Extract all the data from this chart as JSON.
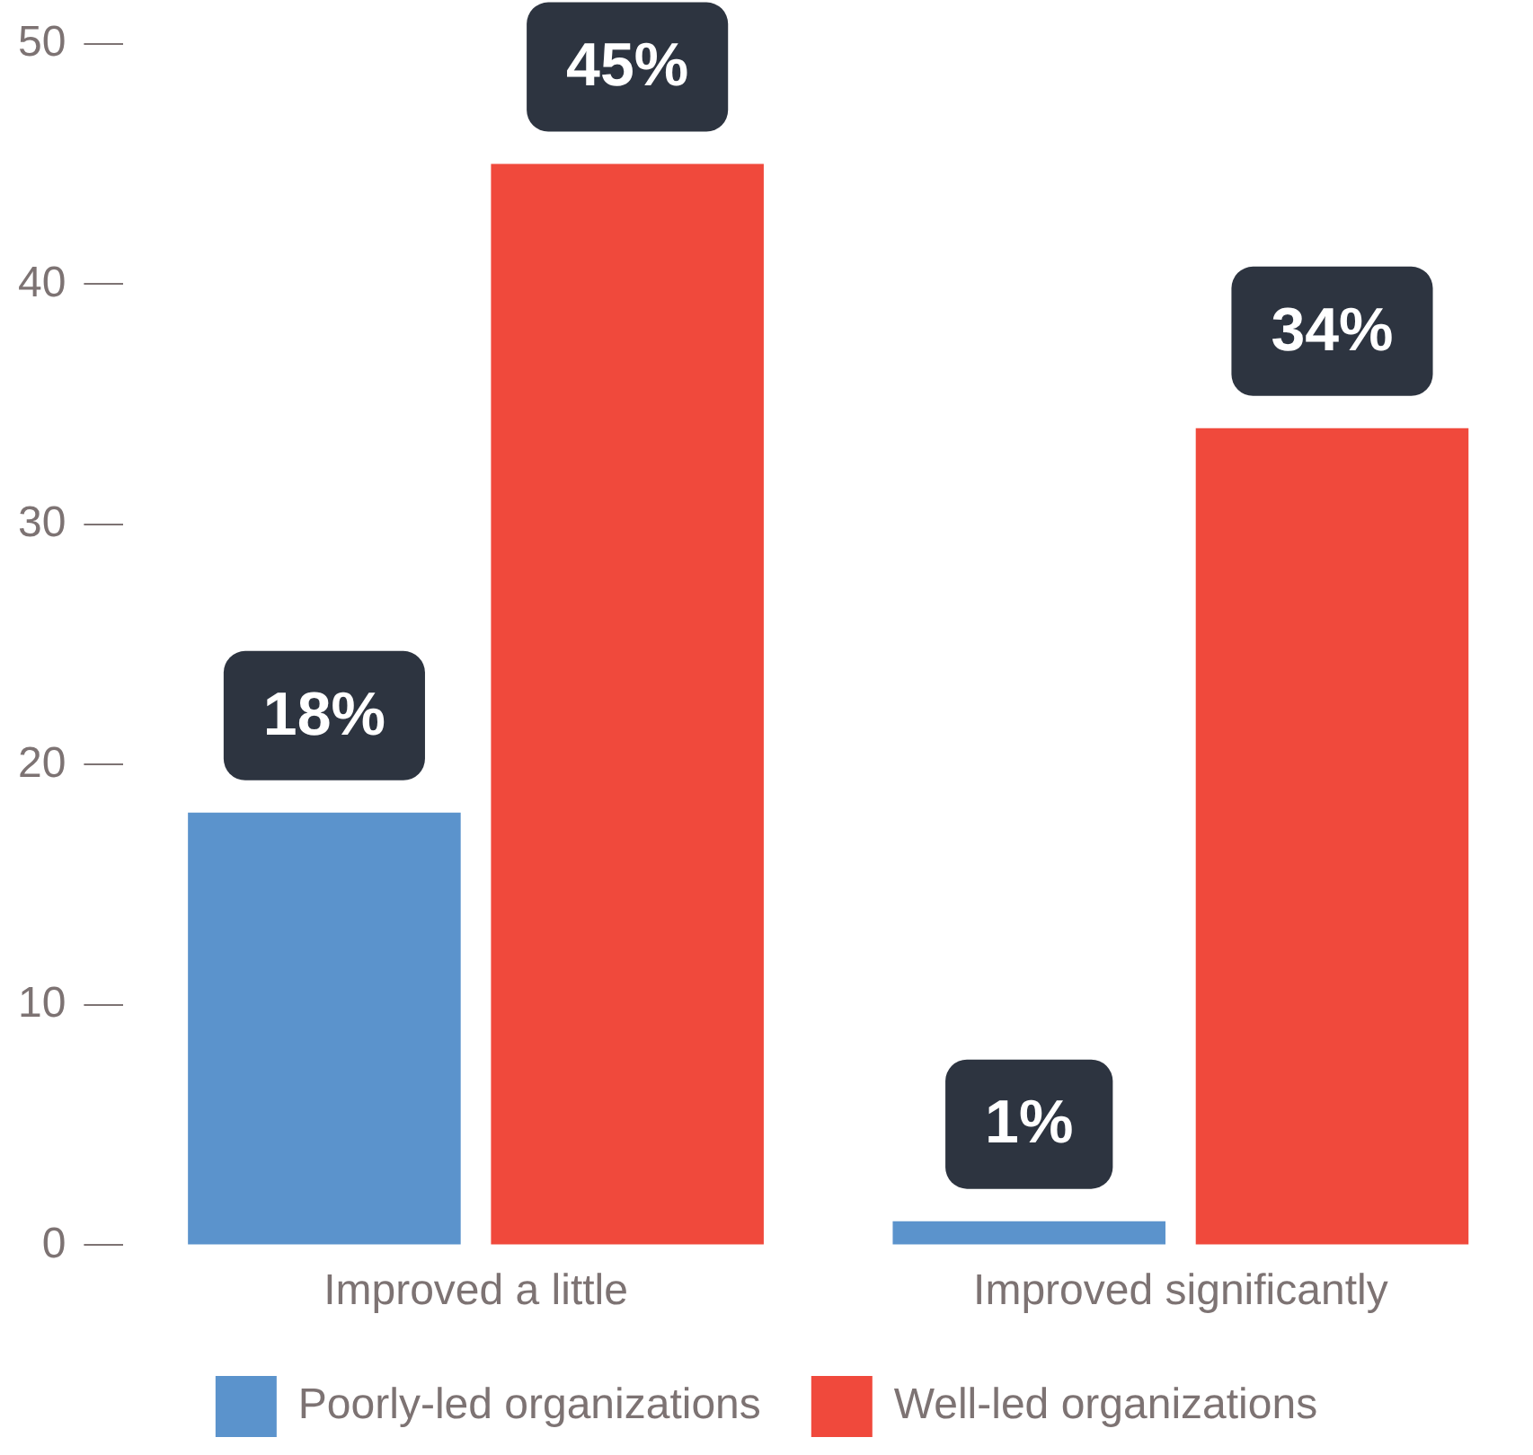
{
  "chart_data": {
    "type": "bar",
    "categories": [
      "Improved a little",
      "Improved significantly"
    ],
    "series": [
      {
        "name": "Poorly-led organizations",
        "color": "#5b93cc",
        "values": [
          18,
          1
        ],
        "value_labels": [
          "18%",
          "1%"
        ]
      },
      {
        "name": "Well-led organizations",
        "color": "#f0493c",
        "values": [
          45,
          34
        ],
        "value_labels": [
          "45%",
          "34%"
        ]
      }
    ],
    "ylim": [
      0,
      50
    ],
    "yticks": [
      0,
      10,
      20,
      30,
      40,
      50
    ],
    "legend": "bottom"
  }
}
